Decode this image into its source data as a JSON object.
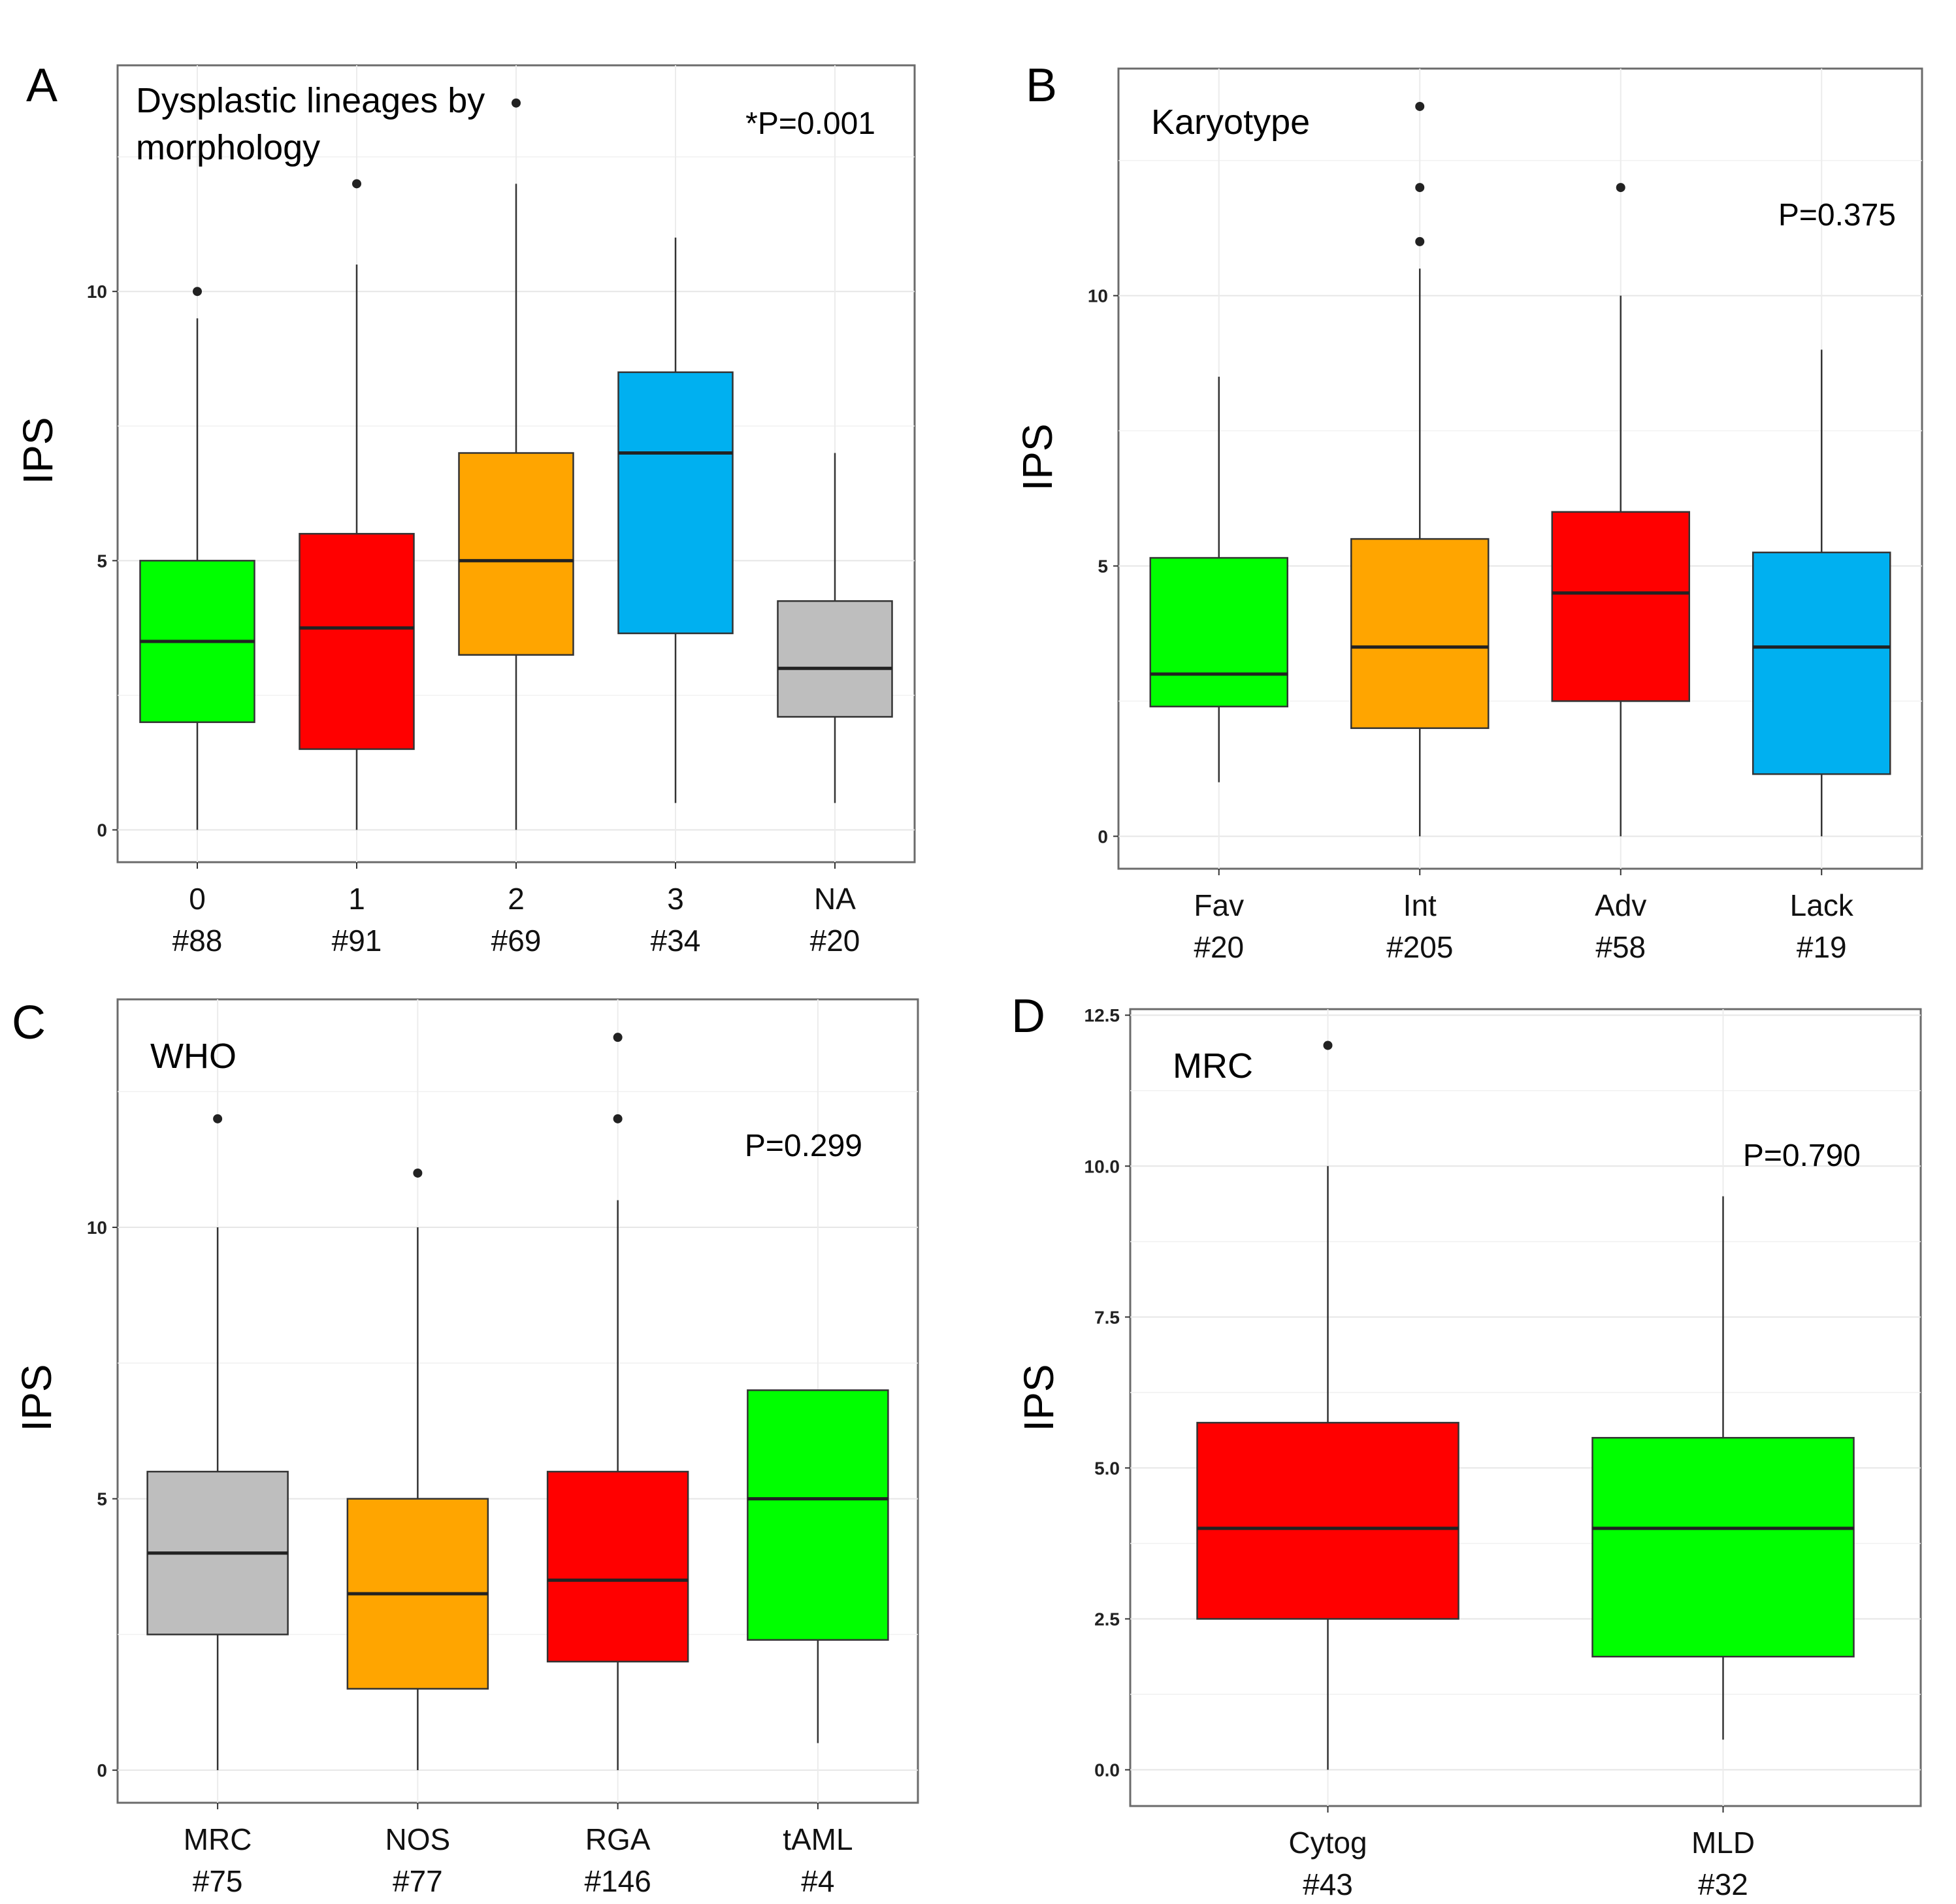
{
  "figure": {
    "y_axis_label": "IPS"
  },
  "chart_data": [
    {
      "type": "boxplot",
      "panel": "A",
      "title_lines": [
        "Dysplastic lineages by",
        "morphology"
      ],
      "p_value": "*P=0.001",
      "ylabel": "IPS",
      "ylim": [
        -0.6,
        14.2
      ],
      "yticks": [
        0,
        5,
        10
      ],
      "ytick_labels": [
        "0",
        "5",
        "10"
      ],
      "categories": [
        "0",
        "1",
        "2",
        "3",
        "NA"
      ],
      "counts": [
        "#88",
        "#91",
        "#69",
        "#34",
        "#20"
      ],
      "colors": [
        "#00ff00",
        "#ff0000",
        "#ffa500",
        "#00b0f0",
        "#bebebe"
      ],
      "boxes": [
        {
          "q1": 2.0,
          "median": 3.5,
          "q3": 5.0,
          "whisker_low": 0.0,
          "whisker_high": 9.5,
          "outliers": [
            10.0
          ]
        },
        {
          "q1": 1.5,
          "median": 3.75,
          "q3": 5.5,
          "whisker_low": 0.0,
          "whisker_high": 10.5,
          "outliers": [
            12.0
          ]
        },
        {
          "q1": 3.25,
          "median": 5.0,
          "q3": 7.0,
          "whisker_low": 0.0,
          "whisker_high": 12.0,
          "outliers": [
            13.5
          ]
        },
        {
          "q1": 3.65,
          "median": 7.0,
          "q3": 8.5,
          "whisker_low": 0.5,
          "whisker_high": 11.0,
          "outliers": []
        },
        {
          "q1": 2.1,
          "median": 3.0,
          "q3": 4.25,
          "whisker_low": 0.5,
          "whisker_high": 7.0,
          "outliers": []
        }
      ]
    },
    {
      "type": "boxplot",
      "panel": "B",
      "title_lines": [
        "Karyotype"
      ],
      "p_value": "P=0.375",
      "ylabel": "IPS",
      "ylim": [
        -0.6,
        14.2
      ],
      "yticks": [
        0,
        5,
        10
      ],
      "ytick_labels": [
        "0",
        "5",
        "10"
      ],
      "categories": [
        "Fav",
        "Int",
        "Adv",
        "Lack"
      ],
      "counts": [
        "#20",
        "#205",
        "#58",
        "#19"
      ],
      "colors": [
        "#00ff00",
        "#ffa500",
        "#ff0000",
        "#00b0f0"
      ],
      "boxes": [
        {
          "q1": 2.4,
          "median": 3.0,
          "q3": 5.15,
          "whisker_low": 1.0,
          "whisker_high": 8.5,
          "outliers": []
        },
        {
          "q1": 2.0,
          "median": 3.5,
          "q3": 5.5,
          "whisker_low": 0.0,
          "whisker_high": 10.5,
          "outliers": [
            11.0,
            12.0,
            13.5
          ]
        },
        {
          "q1": 2.5,
          "median": 4.5,
          "q3": 6.0,
          "whisker_low": 0.0,
          "whisker_high": 10.0,
          "outliers": [
            12.0
          ]
        },
        {
          "q1": 1.15,
          "median": 3.5,
          "q3": 5.25,
          "whisker_low": 0.0,
          "whisker_high": 9.0,
          "outliers": []
        }
      ]
    },
    {
      "type": "boxplot",
      "panel": "C",
      "title_lines": [
        "WHO"
      ],
      "p_value": "P=0.299",
      "ylabel": "IPS",
      "ylim": [
        -0.6,
        14.2
      ],
      "yticks": [
        0,
        5,
        10
      ],
      "ytick_labels": [
        "0",
        "5",
        "10"
      ],
      "categories": [
        "MRC",
        "NOS",
        "RGA",
        "tAML"
      ],
      "counts": [
        "#75",
        "#77",
        "#146",
        "#4"
      ],
      "colors": [
        "#bebebe",
        "#ffa500",
        "#ff0000",
        "#00ff00"
      ],
      "boxes": [
        {
          "q1": 2.5,
          "median": 4.0,
          "q3": 5.5,
          "whisker_low": 0.0,
          "whisker_high": 10.0,
          "outliers": [
            12.0
          ]
        },
        {
          "q1": 1.5,
          "median": 3.25,
          "q3": 5.0,
          "whisker_low": 0.0,
          "whisker_high": 10.0,
          "outliers": [
            11.0
          ]
        },
        {
          "q1": 2.0,
          "median": 3.5,
          "q3": 5.5,
          "whisker_low": 0.0,
          "whisker_high": 10.5,
          "outliers": [
            12.0,
            13.5
          ]
        },
        {
          "q1": 2.4,
          "median": 5.0,
          "q3": 7.0,
          "whisker_low": 0.5,
          "whisker_high": 7.0,
          "outliers": []
        }
      ]
    },
    {
      "type": "boxplot",
      "panel": "D",
      "title_lines": [
        "MRC"
      ],
      "p_value": "P=0.790",
      "ylabel": "IPS",
      "ylim": [
        -0.6,
        12.6
      ],
      "yticks": [
        0,
        2.5,
        5,
        7.5,
        10,
        12.5
      ],
      "ytick_labels": [
        "0.0",
        "2.5",
        "5.0",
        "7.5",
        "10.0",
        "12.5"
      ],
      "categories": [
        "Cytog",
        "MLD"
      ],
      "counts": [
        "#43",
        "#32"
      ],
      "colors": [
        "#ff0000",
        "#00ff00"
      ],
      "boxes": [
        {
          "q1": 2.5,
          "median": 4.0,
          "q3": 5.75,
          "whisker_low": 0.0,
          "whisker_high": 10.0,
          "outliers": [
            12.0
          ]
        },
        {
          "q1": 1.875,
          "median": 4.0,
          "q3": 5.5,
          "whisker_low": 0.5,
          "whisker_high": 9.5,
          "outliers": []
        }
      ]
    }
  ]
}
